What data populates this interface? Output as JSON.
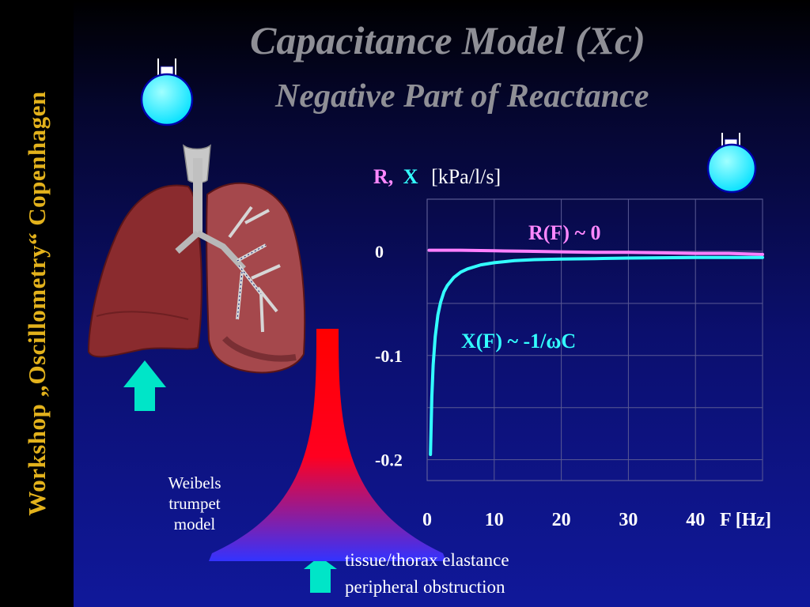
{
  "slide": {
    "sidebar_text": "Workshop „Oscillometry“ Copenhagen",
    "title": "Capacitance Model  (Xc)",
    "subtitle": "Negative Part of Reactance"
  },
  "illustrations": {
    "lungs_icon": "lungs-with-bronchial-tree",
    "flask_icon": "round-bottom-flask",
    "arrow_icon": "up-arrow",
    "arrow_color": "#00e5c8",
    "flask_color": "#00ffff",
    "trumpet_top_color": "#ff0000",
    "trumpet_bottom_color": "#3333ff"
  },
  "annotations": {
    "weibel": [
      "Weibels",
      "trumpet",
      "model"
    ],
    "tissue": [
      "tissue/thorax elastance",
      "peripheral obstruction"
    ]
  },
  "chart_data": {
    "type": "line",
    "ylabel_parts": [
      "R,",
      "X",
      "[kPa/l/s]"
    ],
    "xlabel": "F [Hz]",
    "x_ticks": [
      0,
      10,
      20,
      30,
      40
    ],
    "y_ticks": [
      0,
      -0.1,
      -0.2
    ],
    "y_tick_labels": [
      "0",
      "-0.1",
      "-0.2"
    ],
    "xlim": [
      0,
      50
    ],
    "ylim": [
      -0.22,
      0.05
    ],
    "grid": true,
    "series": [
      {
        "name": "R(F) ~ 0",
        "color": "#ff80ff",
        "x": [
          0.3,
          5,
          10,
          15,
          20,
          25,
          30,
          35,
          40,
          45,
          50
        ],
        "y": [
          0.001,
          0.001,
          0.0005,
          0.0,
          -0.0005,
          -0.001,
          -0.001,
          -0.0015,
          -0.002,
          -0.002,
          -0.003
        ]
      },
      {
        "name": "X(F) ~ -1/ωC",
        "color": "#33ffff",
        "x": [
          0.5,
          0.7,
          0.9,
          1.2,
          1.6,
          2,
          2.5,
          3,
          4,
          5,
          6,
          8,
          10,
          13,
          16,
          20,
          25,
          30,
          35,
          40,
          45,
          50
        ],
        "y": [
          -0.195,
          -0.14,
          -0.109,
          -0.082,
          -0.061,
          -0.049,
          -0.039,
          -0.033,
          -0.025,
          -0.02,
          -0.017,
          -0.013,
          -0.011,
          -0.009,
          -0.008,
          -0.0075,
          -0.007,
          -0.0065,
          -0.0062,
          -0.006,
          -0.006,
          -0.006
        ]
      }
    ]
  }
}
